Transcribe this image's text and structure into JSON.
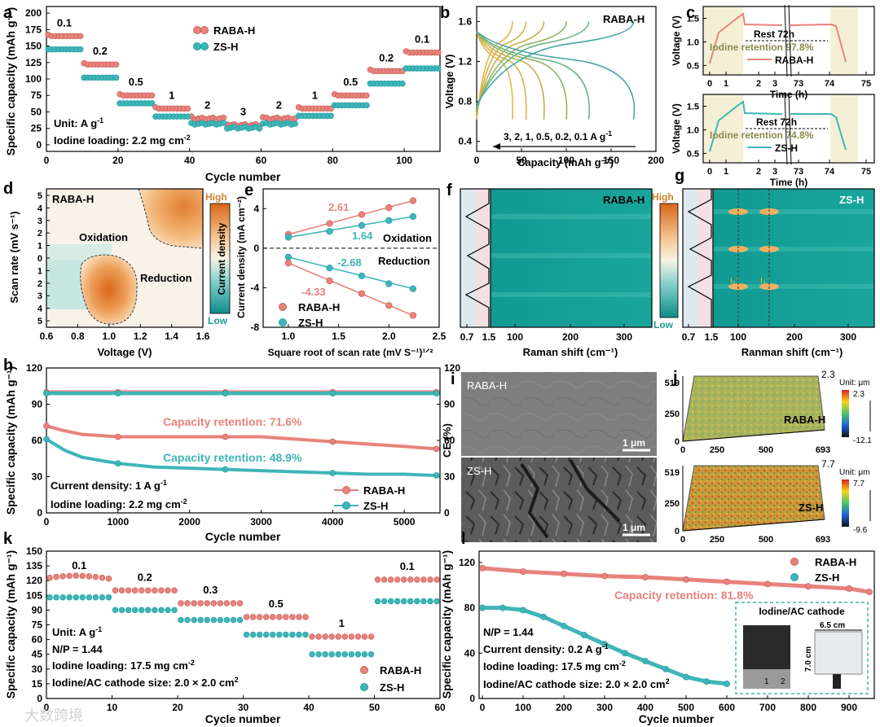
{
  "panels": {
    "a": {
      "letter": "a",
      "legend": [
        "RABA-H",
        "ZS-H"
      ],
      "rate_labels": [
        "0.1",
        "0.2",
        "0.5",
        "1",
        "2",
        "3",
        "2",
        "1",
        "0.5",
        "0.2",
        "0.1"
      ],
      "notes": [
        "Unit: A g",
        "Iodine loading: 2.2 mg cm"
      ],
      "note_sup": [
        "-1",
        "-2"
      ]
    },
    "b": {
      "letter": "b",
      "label": "RABA-H",
      "arrow_text": "3, 2, 1, 0.5, 0.2, 0.1 A g",
      "arrow_sup": "-1"
    },
    "c": {
      "letter": "c",
      "rest": "Rest 72h",
      "ret_top": "Iodine retention 97.8%",
      "ret_bot": "Iodine retention 74.8%",
      "legend_top": "RABA-H",
      "legend_bot": "ZS-H"
    },
    "d": {
      "letter": "d",
      "label": "RABA-H",
      "oxidation": "Oxidation",
      "reduction": "Reduction",
      "cbar_title": "Current density",
      "cbar_high": "High",
      "cbar_low": "Low"
    },
    "e": {
      "letter": "e",
      "v1": "2.61",
      "v2": "1.64",
      "v3": "-2.68",
      "v4": "-4.33",
      "oxidation": "Oxidation",
      "reduction": "Reduction",
      "legend": [
        "RABA-H",
        "ZS-H"
      ]
    },
    "f": {
      "letter": "f",
      "label": "RABA-H",
      "cbar_high": "High",
      "cbar_low": "Low"
    },
    "g": {
      "letter": "g",
      "label": "ZS-H",
      "mark1": "I₂⁻",
      "mark2": "I₃⁻"
    },
    "h": {
      "letter": "h",
      "ret1": "Capacity retention: 71.6%",
      "ret2": "Capacity retention: 48.9%",
      "notes": [
        "Current density: 1 A g",
        "Iodine loading: 2.2 mg cm"
      ],
      "note_sup": [
        "-1",
        "-2"
      ],
      "legend": [
        "RABA-H",
        "ZS-H"
      ]
    },
    "i": {
      "letter": "i",
      "top_label": "RABA-H",
      "bot_label": "ZS-H",
      "scale": "1 μm"
    },
    "j": {
      "letter": "j",
      "top_label": "RABA-H",
      "bot_label": "ZS-H",
      "unit": "Unit: μm",
      "top_max": "2.3",
      "top_min": "-12.1",
      "bot_max": "7.7",
      "bot_min": "-9.6",
      "y_ticks": [
        "0",
        "250",
        "519"
      ],
      "x_ticks": [
        "0",
        "250",
        "500",
        "693"
      ]
    },
    "k": {
      "letter": "k",
      "rate_labels": [
        "0.1",
        "0.2",
        "0.3",
        "0.5",
        "1",
        "0.1"
      ],
      "notes": [
        "Unit: A g",
        "N/P = 1.44",
        "Iodine loading: 17.5 mg cm",
        "Iodine/AC cathode size: 2.0 × 2.0 cm"
      ],
      "note_sup": [
        "-1",
        "",
        "-2",
        "2"
      ],
      "legend": [
        "RABA-H",
        "ZS-H"
      ]
    },
    "l": {
      "letter": "l",
      "ret": "Capacity retention: 81.8%",
      "notes": [
        "N/P = 1.44",
        "Current density: 0.2 A g",
        "Iodine loading: 17.5 mg cm",
        "Iodine/AC cathode size: 2.0 × 2.0 cm"
      ],
      "note_sup": [
        "",
        "-1",
        "-2",
        "2"
      ],
      "legend": [
        "RABA-H",
        "ZS-H"
      ],
      "inset_title": "Iodine/AC cathode",
      "inset_w": "6.5 cm",
      "inset_h": "7.0 cm",
      "ruler": [
        "1",
        "2"
      ]
    }
  },
  "watermark": "大数跨境",
  "colors": {
    "raba": "#e8837c",
    "zs": "#3fb5b8",
    "raba_dark": "#c9605a",
    "zs_dark": "#239fa3"
  },
  "chart_data": [
    {
      "panel": "a",
      "type": "scatter",
      "title": "",
      "xlabel": "Cycle number",
      "ylabel": "Specific capacity (mAh g⁻¹)",
      "xlim": [
        0,
        110
      ],
      "ylim": [
        -10,
        210
      ],
      "xticks": [
        0,
        20,
        40,
        60,
        80,
        100
      ],
      "yticks": [
        0,
        25,
        50,
        75,
        100,
        125,
        150,
        175,
        200
      ],
      "segments": [
        [
          0,
          10
        ],
        [
          10,
          20
        ],
        [
          20,
          30
        ],
        [
          30,
          40
        ],
        [
          40,
          50
        ],
        [
          50,
          60
        ],
        [
          60,
          70
        ],
        [
          70,
          80
        ],
        [
          80,
          90
        ],
        [
          90,
          100
        ],
        [
          100,
          110
        ]
      ],
      "series": [
        {
          "name": "RABA-H",
          "values": [
            165,
            122,
            75,
            55,
            40,
            30,
            40,
            55,
            75,
            112,
            140
          ]
        },
        {
          "name": "ZS-H",
          "values": [
            145,
            102,
            63,
            43,
            32,
            26,
            32,
            44,
            60,
            93,
            116
          ]
        }
      ]
    },
    {
      "panel": "b",
      "type": "line",
      "xlabel": "Capacity (mAh g⁻¹)",
      "ylabel": "Voltage (V)",
      "xlim": [
        0,
        200
      ],
      "ylim": [
        0.3,
        1.75
      ],
      "xticks": [
        0,
        50,
        100,
        150,
        200
      ],
      "yticks": [
        0.4,
        0.8,
        1.2,
        1.6
      ],
      "series": [
        {
          "name": "3",
          "capacity": 40
        },
        {
          "name": "2",
          "capacity": 55
        },
        {
          "name": "1",
          "capacity": 75
        },
        {
          "name": "0.5",
          "capacity": 100
        },
        {
          "name": "0.2",
          "capacity": 125
        },
        {
          "name": "0.1",
          "capacity": 175
        }
      ]
    },
    {
      "panel": "c",
      "type": "line",
      "xlabel": "Time (h)",
      "ylabel": "Voltage (V)",
      "xticks": [
        "0",
        "1",
        "2",
        "3",
        "73",
        "74",
        "75"
      ],
      "yticks": [
        0.5,
        1.0,
        1.5
      ],
      "ylim": [
        0.3,
        1.75
      ]
    },
    {
      "panel": "d",
      "type": "heatmap",
      "xlabel": "Voltage (V)",
      "ylabel": "Scan rate (mV s⁻¹)",
      "xticks": [
        0.6,
        0.8,
        1.0,
        1.2,
        1.4,
        1.6
      ],
      "yticks": [
        "5",
        "4",
        "3",
        "2",
        "1",
        "0",
        "1",
        "2",
        "3",
        "4",
        "5"
      ]
    },
    {
      "panel": "e",
      "type": "scatter",
      "xlabel": "Square root of scan rate (mV S⁻¹)¹ᐟ²",
      "ylabel": "Current density (mA cm⁻²)",
      "xlim": [
        0.75,
        2.5
      ],
      "ylim": [
        -8,
        6
      ],
      "xticks": [
        1.0,
        1.5,
        2.0,
        2.5
      ],
      "yticks": [
        -8,
        -4,
        0,
        4
      ],
      "x": [
        1.0,
        1.41,
        1.73,
        2.0,
        2.24
      ],
      "series": [
        {
          "name": "RABA-H ox",
          "values": [
            1.4,
            2.5,
            3.4,
            4.1,
            4.8
          ]
        },
        {
          "name": "ZS-H ox",
          "values": [
            1.1,
            1.7,
            2.3,
            2.8,
            3.2
          ]
        },
        {
          "name": "ZS-H red",
          "values": [
            -0.9,
            -2.0,
            -2.8,
            -3.6,
            -4.1
          ]
        },
        {
          "name": "RABA-H red",
          "values": [
            -1.5,
            -3.3,
            -4.6,
            -5.8,
            -6.8
          ]
        }
      ]
    },
    {
      "panel": "f",
      "type": "heatmap",
      "xlabel": "Raman shift (cm⁻¹)",
      "xticks": [
        "0.7",
        "1.5",
        "100",
        "200",
        "300"
      ]
    },
    {
      "panel": "g",
      "type": "heatmap",
      "xlabel": "Ranman shift (cm⁻¹)",
      "xticks": [
        "0.7",
        "1.5",
        "100",
        "200",
        "300"
      ]
    },
    {
      "panel": "h",
      "type": "scatter",
      "xlabel": "Cycle number",
      "ylabel": "Specific capacity (mAh g⁻¹)",
      "ylabel2": "CE (%)",
      "xlim": [
        0,
        5500
      ],
      "ylim": [
        0,
        120
      ],
      "xticks": [
        0,
        1000,
        2000,
        3000,
        4000,
        5000
      ],
      "yticks": [
        0,
        30,
        60,
        90,
        120
      ],
      "x": [
        0,
        250,
        500,
        1000,
        1500,
        2000,
        2500,
        3000,
        3500,
        4000,
        4500,
        5000,
        5450
      ],
      "series": [
        {
          "name": "RABA-H",
          "values": [
            72,
            68,
            65,
            63,
            63,
            63,
            63,
            63,
            61,
            59,
            57,
            55,
            53
          ]
        },
        {
          "name": "ZS-H",
          "values": [
            61,
            52,
            46,
            41,
            38,
            37,
            36,
            35,
            34,
            33,
            32,
            32,
            31
          ]
        },
        {
          "name": "RABA-H CE",
          "values": [
            100,
            100,
            100,
            100,
            100,
            100,
            100,
            100,
            100,
            100,
            100,
            100,
            100
          ]
        },
        {
          "name": "ZS-H CE",
          "values": [
            99,
            99,
            99,
            99,
            99,
            99,
            99,
            99,
            99,
            99,
            99,
            99,
            99
          ]
        }
      ]
    },
    {
      "panel": "k",
      "type": "scatter",
      "xlabel": "Cycle number",
      "ylabel": "Specific capacity (mAh g⁻¹)",
      "xlim": [
        0,
        60
      ],
      "ylim": [
        0,
        150
      ],
      "xticks": [
        0,
        10,
        20,
        30,
        40,
        50,
        60
      ],
      "yticks": [
        0,
        15,
        30,
        45,
        60,
        75,
        90,
        105,
        120,
        135,
        150
      ],
      "segments": [
        [
          0,
          10
        ],
        [
          10,
          20
        ],
        [
          20,
          30
        ],
        [
          30,
          40
        ],
        [
          40,
          50
        ],
        [
          50,
          60
        ]
      ],
      "series": [
        {
          "name": "RABA-H",
          "values": [
            122,
            110,
            97,
            83,
            63,
            121
          ]
        },
        {
          "name": "ZS-H",
          "values": [
            103,
            90,
            80,
            65,
            45,
            99
          ]
        }
      ]
    },
    {
      "panel": "l",
      "type": "scatter",
      "xlabel": "Cycle number",
      "ylabel": "Specific capacity (mAh g⁻¹)",
      "xlim": [
        0,
        950
      ],
      "ylim": [
        0,
        130
      ],
      "xticks": [
        0,
        100,
        200,
        300,
        400,
        500,
        600,
        700,
        800,
        900
      ],
      "yticks": [
        0,
        40,
        80,
        120
      ],
      "x": [
        0,
        100,
        200,
        300,
        400,
        500,
        600,
        700,
        800,
        900,
        950
      ],
      "series": [
        {
          "name": "RABA-H",
          "values": [
            115,
            112,
            110,
            108,
            107,
            105,
            103,
            101,
            99,
            97,
            94
          ]
        },
        {
          "name": "ZS-H",
          "x": [
            0,
            50,
            100,
            150,
            200,
            250,
            300,
            350,
            400,
            450,
            500,
            550,
            600
          ],
          "values": [
            80,
            80,
            78,
            72,
            64,
            56,
            48,
            40,
            33,
            26,
            19,
            15,
            13
          ]
        }
      ]
    }
  ]
}
